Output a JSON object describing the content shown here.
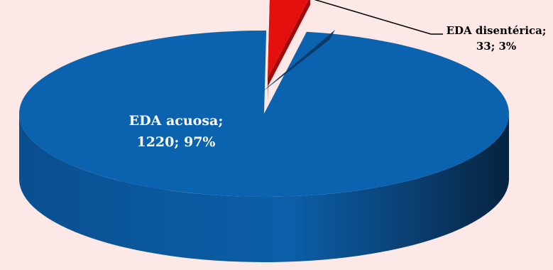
{
  "chart_data": {
    "type": "pie",
    "style": "3d-exploded",
    "slices": [
      {
        "name": "EDA acuosa",
        "value": 1220,
        "percent": 97,
        "color": "#0b63b0",
        "label": "EDA acuosa;\n1220; 97%"
      },
      {
        "name": "EDA disentérica",
        "value": 33,
        "percent": 3,
        "color": "#e3100e",
        "label": "EDA disentérica;\n33; 3%"
      }
    ],
    "legend": "none",
    "background": "#fce8e6"
  }
}
